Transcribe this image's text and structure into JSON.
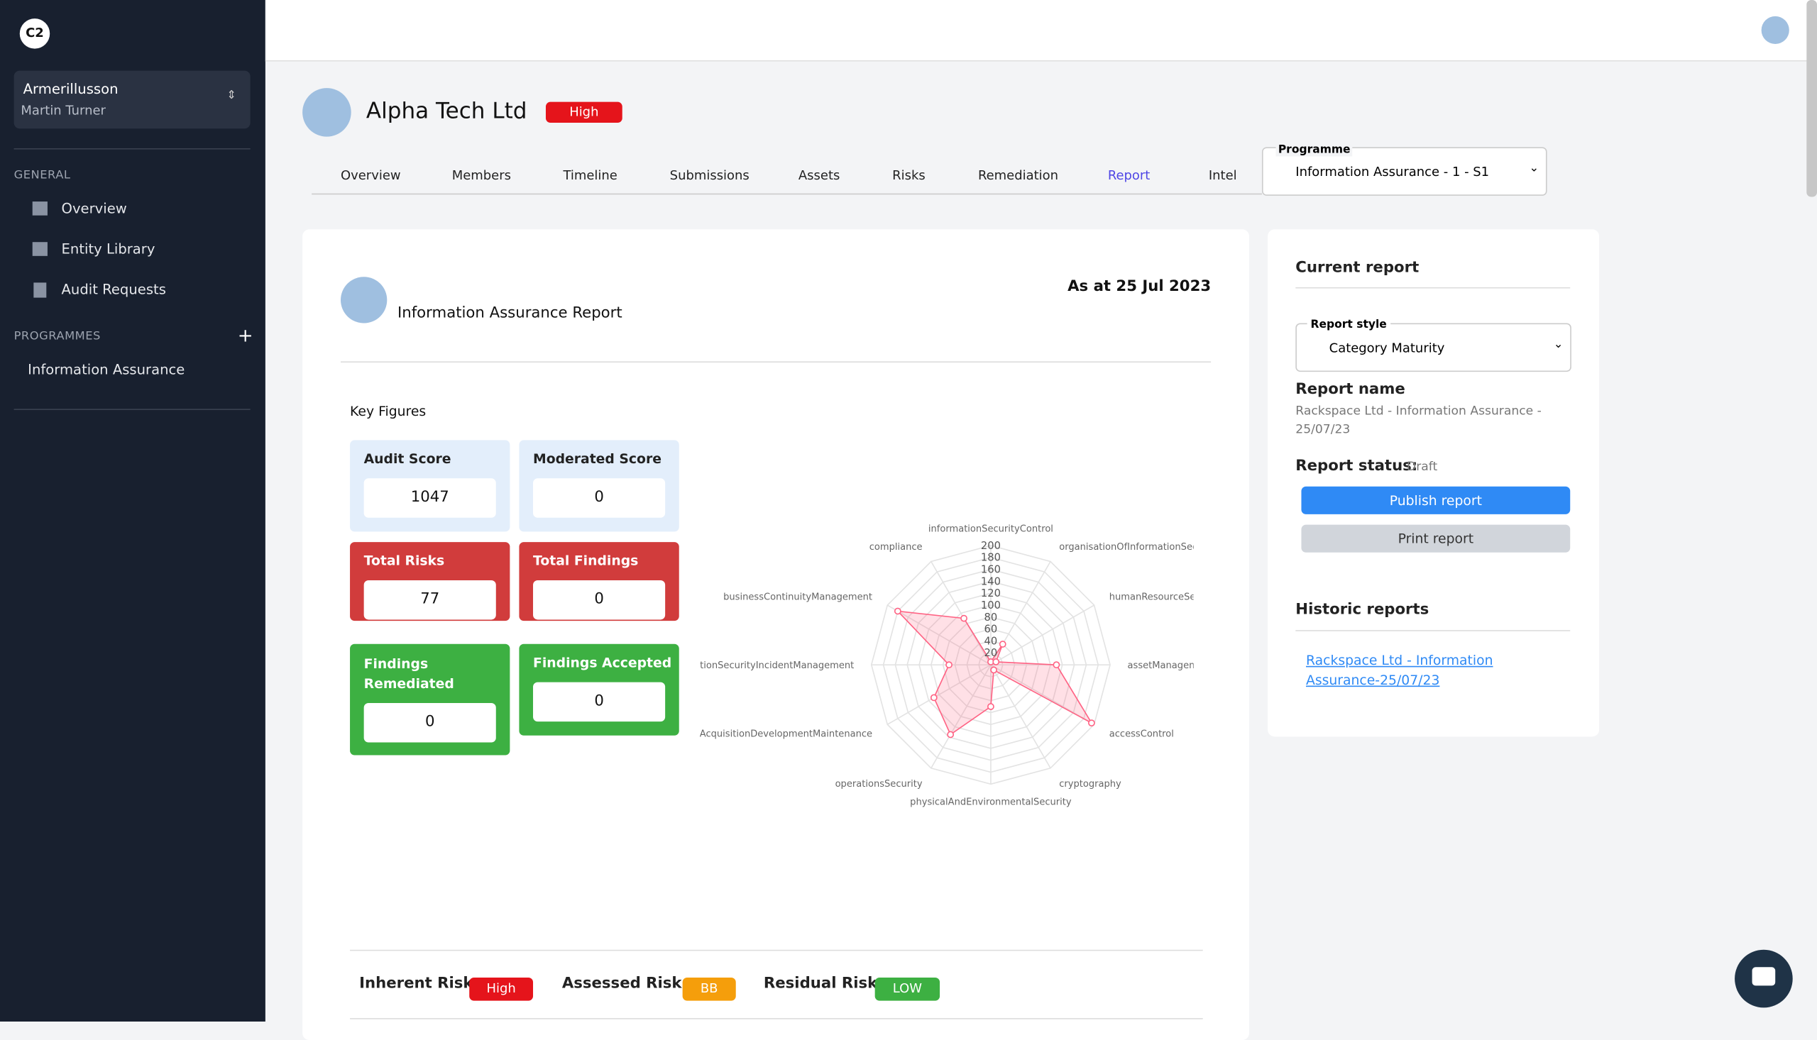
{
  "sidebar": {
    "logo": "C2",
    "account": "Armerillusson",
    "user": "Martin Turner",
    "general": "GENERAL",
    "nav": [
      "Overview",
      "Entity Library",
      "Audit Requests"
    ],
    "programmes": "PROGRAMMES",
    "programme_items": [
      "Information Assurance"
    ]
  },
  "header": {
    "company": "Alpha Tech Ltd",
    "risk_badge": "High",
    "tabs": [
      "Overview",
      "Members",
      "Timeline",
      "Submissions",
      "Assets",
      "Risks",
      "Remediation",
      "Report",
      "Intel"
    ],
    "programme_label": "Programme",
    "programme_value": "Information Assurance - 1 - S1"
  },
  "report": {
    "title": "Information Assurance Report",
    "date": "As at 25 Jul 2023",
    "key_figures_title": "Key Figures",
    "figures": [
      {
        "label": "Audit Score",
        "value": "1047"
      },
      {
        "label": "Moderated Score",
        "value": "0"
      },
      {
        "label": "Total Risks",
        "value": "77"
      },
      {
        "label": "Total Findings",
        "value": "0"
      },
      {
        "label": "Findings Remediated",
        "value": "0"
      },
      {
        "label": "Findings Accepted",
        "value": "0"
      }
    ],
    "risks": [
      {
        "label": "Inherent Risk:",
        "value": "High"
      },
      {
        "label": "Assessed Risk:",
        "value": "BB"
      },
      {
        "label": "Residual Risk:",
        "value": "LOW"
      }
    ]
  },
  "chart_data": {
    "type": "radar",
    "categories": [
      "informationSecurityControl",
      "organisationOfInformationSecuri",
      "humanResourceSec",
      "assetManageme",
      "accessControl",
      "cryptography",
      "physicalAndEnvironmentalSecurity",
      "operationsSecurity",
      "ystemAcquisitionDevelopmentMaintenance",
      "ormationSecurityIncidentManagement",
      "businessContinuityManagement",
      "compliance"
    ],
    "series": [
      {
        "color": "#ff6384",
        "values": [
          5,
          40,
          10,
          110,
          195,
          10,
          70,
          135,
          110,
          70,
          180,
          90
        ]
      }
    ],
    "rlim": [
      0,
      200
    ],
    "rticks": [
      20,
      40,
      60,
      80,
      100,
      120,
      140,
      160,
      180,
      200
    ]
  },
  "panel": {
    "current_title": "Current report",
    "style_label": "Report style",
    "style_value": "Category Maturity",
    "name_label": "Report name",
    "name_value": "Rackspace Ltd - Information Assurance - 25/07/23",
    "status_label": "Report status:",
    "status_value": "Draft",
    "publish": "Publish report",
    "print": "Print report",
    "historic_title": "Historic reports",
    "historic_link": "Rackspace Ltd - Information Assurance-25/07/23"
  }
}
